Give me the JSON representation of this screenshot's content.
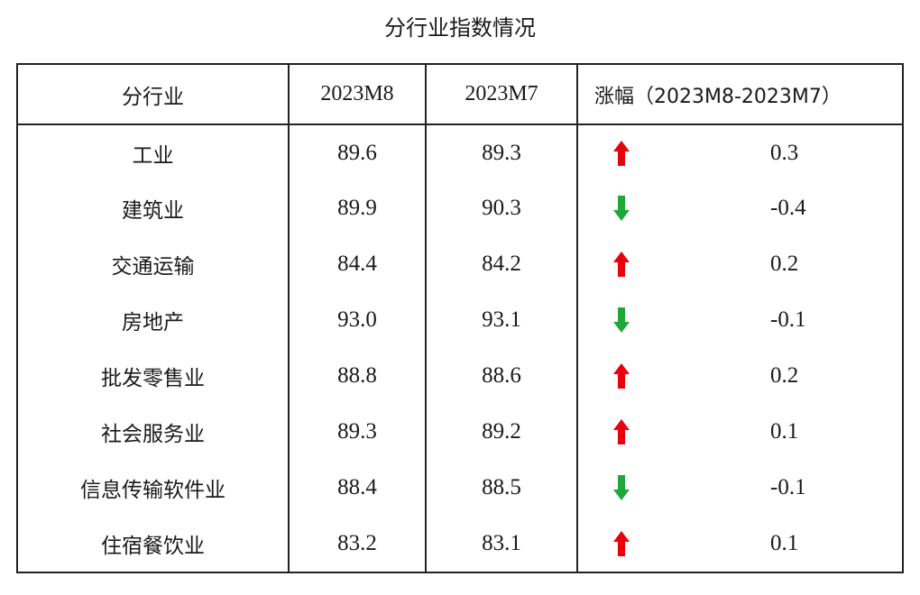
{
  "title": "分行业指数情况",
  "colors": {
    "up_arrow": "#e8000b",
    "down_arrow": "#1ea83a",
    "border": "#222222"
  },
  "table": {
    "headers": {
      "sector": "分行业",
      "m8": "2023M8",
      "m7": "2023M7",
      "change": "涨幅（2023M8-2023M7）"
    },
    "rows": [
      {
        "sector": "工业",
        "m8": "89.6",
        "m7": "89.3",
        "direction": "up-arrow-icon",
        "change": "0.3"
      },
      {
        "sector": "建筑业",
        "m8": "89.9",
        "m7": "90.3",
        "direction": "down-arrow-icon",
        "change": "-0.4"
      },
      {
        "sector": "交通运输",
        "m8": "84.4",
        "m7": "84.2",
        "direction": "up-arrow-icon",
        "change": "0.2"
      },
      {
        "sector": "房地产",
        "m8": "93.0",
        "m7": "93.1",
        "direction": "down-arrow-icon",
        "change": "-0.1"
      },
      {
        "sector": "批发零售业",
        "m8": "88.8",
        "m7": "88.6",
        "direction": "up-arrow-icon",
        "change": "0.2"
      },
      {
        "sector": "社会服务业",
        "m8": "89.3",
        "m7": "89.2",
        "direction": "up-arrow-icon",
        "change": "0.1"
      },
      {
        "sector": "信息传输软件业",
        "m8": "88.4",
        "m7": "88.5",
        "direction": "down-arrow-icon",
        "change": "-0.1"
      },
      {
        "sector": "住宿餐饮业",
        "m8": "83.2",
        "m7": "83.1",
        "direction": "up-arrow-icon",
        "change": "0.1"
      }
    ]
  }
}
